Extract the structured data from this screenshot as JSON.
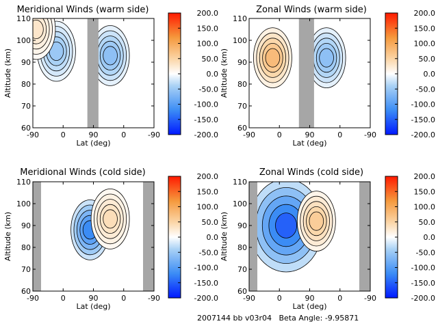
{
  "footer": {
    "text": "2007144 bb v03r04   Beta Angle: -9.95871"
  },
  "colorbar": {
    "ticks": [
      "200.0",
      "150.0",
      "100.0",
      "50.0",
      "0.0",
      "-50.0",
      "-100.0",
      "-150.0",
      "-200.0"
    ],
    "range": [
      -200,
      200
    ],
    "colors": {
      "min": "#0019ff",
      "low": "#3b8cf5",
      "mid_low": "#a9d1f5",
      "zero": "#ffffff",
      "mid_high": "#fbd6a8",
      "high": "#f5983c",
      "max": "#ff1a00"
    }
  },
  "gap_color": "#a6a6a6",
  "chart_data": [
    {
      "type": "heatmap",
      "title": "Meridional Winds (warm side)",
      "xlabel": "Lat (deg)",
      "ylabel": "Altitude (km)",
      "xticks": [
        "-90",
        "0",
        "90",
        "0",
        "-90"
      ],
      "yticks": [
        "110",
        "100",
        "90",
        "80",
        "70",
        "60"
      ],
      "ylim": [
        60,
        110
      ],
      "xlim": [
        -90,
        90,
        -90
      ],
      "gap_region": [
        72,
        105
      ],
      "gap_near_edge": null,
      "features": [
        {
          "shape": "blob",
          "value": -50,
          "lat": -20,
          "alt": 95
        },
        {
          "shape": "blob",
          "value": -60,
          "lat": 140,
          "alt": 93
        },
        {
          "shape": "blob",
          "value": 30,
          "lat": -80,
          "alt": 105
        }
      ]
    },
    {
      "type": "heatmap",
      "title": "Zonal Winds (warm side)",
      "xlabel": "Lat (deg)",
      "ylabel": "Altitude (km)",
      "xticks": [
        "-90",
        "0",
        "90",
        "0",
        "-90"
      ],
      "yticks": [
        "110",
        "100",
        "90",
        "80",
        "70",
        "60"
      ],
      "ylim": [
        60,
        110
      ],
      "xlim": [
        -90,
        90,
        -90
      ],
      "gap_region": [
        58,
        103
      ],
      "gap_near_edge": null,
      "features": [
        {
          "shape": "blob",
          "value": 80,
          "lat": -20,
          "alt": 92
        },
        {
          "shape": "blob",
          "value": -60,
          "lat": 140,
          "alt": 92
        }
      ]
    },
    {
      "type": "heatmap",
      "title": "Meridional Winds (cold side)",
      "xlabel": "Lat (deg)",
      "ylabel": "Altitude (km)",
      "xticks": [
        "-90",
        "0",
        "90",
        "0",
        "-90"
      ],
      "yticks": [
        "110",
        "100",
        "90",
        "80",
        "70",
        "60"
      ],
      "ylim": [
        60,
        110
      ],
      "xlim": [
        -90,
        90,
        -90
      ],
      "gap_region": null,
      "gap_near_edge": [
        [
          -90,
          -70
        ],
        [
          -78,
          -90
        ]
      ],
      "features": [
        {
          "shape": "blob",
          "value": -120,
          "lat": 80,
          "alt": 88
        },
        {
          "shape": "blob",
          "value": 40,
          "lat": 140,
          "alt": 93
        }
      ]
    },
    {
      "type": "heatmap",
      "title": "Zonal Winds (cold side)",
      "xlabel": "Lat (deg)",
      "ylabel": "Altitude (km)",
      "xticks": [
        "-90",
        "0",
        "90",
        "0",
        "-90"
      ],
      "yticks": [
        "110",
        "100",
        "90",
        "80",
        "70",
        "60"
      ],
      "ylim": [
        60,
        110
      ],
      "xlim": [
        -90,
        90,
        -90
      ],
      "gap_region": null,
      "gap_near_edge": [
        [
          -90,
          -70
        ],
        [
          -78,
          -90
        ]
      ],
      "features": [
        {
          "shape": "blob",
          "value": -150,
          "lat": 20,
          "alt": 90
        },
        {
          "shape": "blob",
          "value": 60,
          "lat": 110,
          "alt": 92
        }
      ]
    }
  ]
}
